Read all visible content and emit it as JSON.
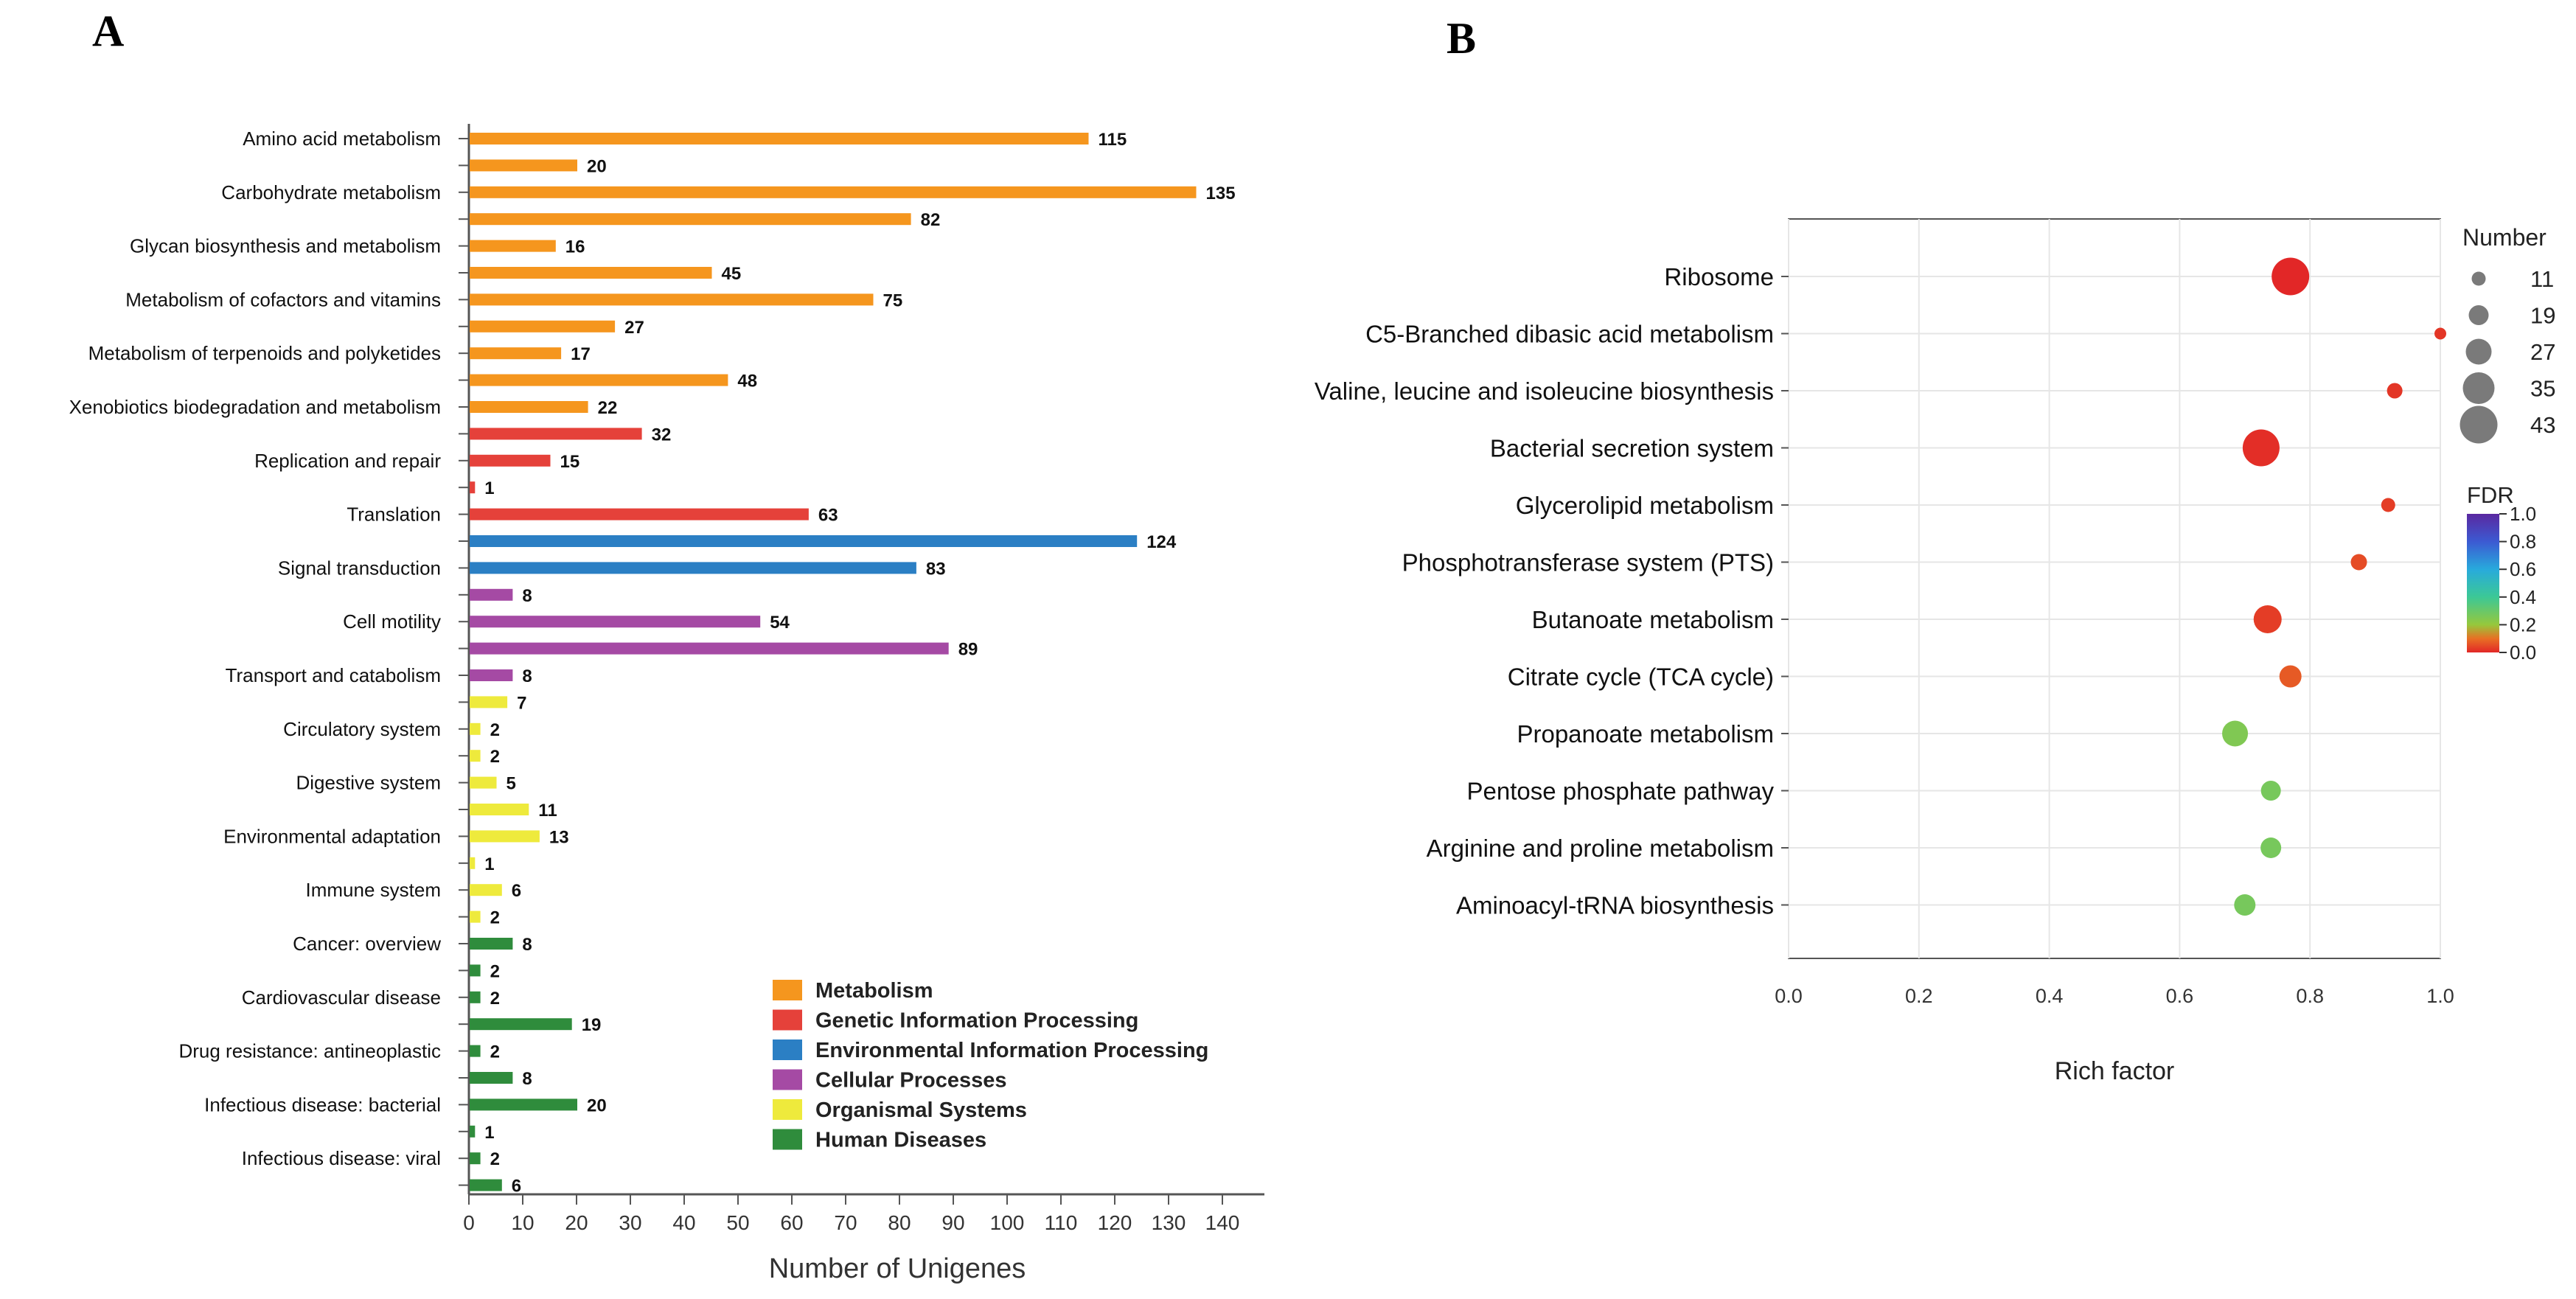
{
  "panel_a_label": "A",
  "panel_b_label": "B",
  "chart_data": [
    {
      "type": "bar",
      "orientation": "horizontal",
      "xlabel": "Number of Unigenes",
      "xlim": [
        0,
        145
      ],
      "xticks": [
        0,
        10,
        20,
        30,
        40,
        50,
        60,
        70,
        80,
        90,
        100,
        110,
        120,
        130,
        140
      ],
      "bars": [
        {
          "label": "Amino acid metabolism",
          "value": 115,
          "group": "Metabolism"
        },
        {
          "label": "",
          "value": 20,
          "group": "Metabolism"
        },
        {
          "label": "Carbohydrate metabolism",
          "value": 135,
          "group": "Metabolism"
        },
        {
          "label": "",
          "value": 82,
          "group": "Metabolism"
        },
        {
          "label": "Glycan biosynthesis and metabolism",
          "value": 16,
          "group": "Metabolism"
        },
        {
          "label": "",
          "value": 45,
          "group": "Metabolism"
        },
        {
          "label": "Metabolism of cofactors and vitamins",
          "value": 75,
          "group": "Metabolism"
        },
        {
          "label": "",
          "value": 27,
          "group": "Metabolism"
        },
        {
          "label": "Metabolism of terpenoids and polyketides",
          "value": 17,
          "group": "Metabolism"
        },
        {
          "label": "",
          "value": 48,
          "group": "Metabolism"
        },
        {
          "label": "Xenobiotics biodegradation and metabolism",
          "value": 22,
          "group": "Metabolism"
        },
        {
          "label": "",
          "value": 32,
          "group": "Genetic Information Processing"
        },
        {
          "label": "Replication and repair",
          "value": 15,
          "group": "Genetic Information Processing"
        },
        {
          "label": "",
          "value": 1,
          "group": "Genetic Information Processing"
        },
        {
          "label": "Translation",
          "value": 63,
          "group": "Genetic Information Processing"
        },
        {
          "label": "",
          "value": 124,
          "group": "Environmental Information Processing"
        },
        {
          "label": "Signal transduction",
          "value": 83,
          "group": "Environmental Information Processing"
        },
        {
          "label": "",
          "value": 8,
          "group": "Cellular Processes"
        },
        {
          "label": "Cell motility",
          "value": 54,
          "group": "Cellular Processes"
        },
        {
          "label": "",
          "value": 89,
          "group": "Cellular Processes"
        },
        {
          "label": "Transport and catabolism",
          "value": 8,
          "group": "Cellular Processes"
        },
        {
          "label": "",
          "value": 7,
          "group": "Organismal Systems"
        },
        {
          "label": "Circulatory system",
          "value": 2,
          "group": "Organismal Systems"
        },
        {
          "label": "",
          "value": 2,
          "group": "Organismal Systems"
        },
        {
          "label": "Digestive system",
          "value": 5,
          "group": "Organismal Systems"
        },
        {
          "label": "",
          "value": 11,
          "group": "Organismal Systems"
        },
        {
          "label": "Environmental adaptation",
          "value": 13,
          "group": "Organismal Systems"
        },
        {
          "label": "",
          "value": 1,
          "group": "Organismal Systems"
        },
        {
          "label": "Immune system",
          "value": 6,
          "group": "Organismal Systems"
        },
        {
          "label": "",
          "value": 2,
          "group": "Organismal Systems"
        },
        {
          "label": "Cancer: overview",
          "value": 8,
          "group": "Human Diseases"
        },
        {
          "label": "",
          "value": 2,
          "group": "Human Diseases"
        },
        {
          "label": "Cardiovascular disease",
          "value": 2,
          "group": "Human Diseases"
        },
        {
          "label": "",
          "value": 19,
          "group": "Human Diseases"
        },
        {
          "label": "Drug resistance: antineoplastic",
          "value": 2,
          "group": "Human Diseases"
        },
        {
          "label": "",
          "value": 8,
          "group": "Human Diseases"
        },
        {
          "label": "Infectious disease: bacterial",
          "value": 20,
          "group": "Human Diseases"
        },
        {
          "label": "",
          "value": 1,
          "group": "Human Diseases"
        },
        {
          "label": "Infectious disease: viral",
          "value": 2,
          "group": "Human Diseases"
        },
        {
          "label": "",
          "value": 6,
          "group": "Human Diseases"
        }
      ],
      "legend": {
        "placement": "bottom-right",
        "items": [
          {
            "name": "Metabolism",
            "color": "#f5961e"
          },
          {
            "name": "Genetic Information Processing",
            "color": "#e5413a"
          },
          {
            "name": "Environmental Information Processing",
            "color": "#2b7fc4"
          },
          {
            "name": "Cellular Processes",
            "color": "#a54aa4"
          },
          {
            "name": "Organismal Systems",
            "color": "#eeea3c"
          },
          {
            "name": "Human Diseases",
            "color": "#2f8c3c"
          }
        ]
      }
    },
    {
      "type": "scatter",
      "subtype": "bubble",
      "xlabel": "Rich factor",
      "xlim": [
        0,
        1.0
      ],
      "xticks": [
        "0.0",
        "0.2",
        "0.4",
        "0.6",
        "0.8",
        "1.0"
      ],
      "grid": true,
      "points": [
        {
          "pathway": "Ribosome",
          "rich_factor": 0.77,
          "number": 43,
          "fdr": 0.0
        },
        {
          "pathway": "C5-Branched dibasic acid metabolism",
          "rich_factor": 1.0,
          "number": 8,
          "fdr": 0.02
        },
        {
          "pathway": "Valine, leucine and isoleucine biosynthesis",
          "rich_factor": 0.93,
          "number": 13,
          "fdr": 0.02
        },
        {
          "pathway": "Bacterial secretion system",
          "rich_factor": 0.725,
          "number": 42,
          "fdr": 0.01
        },
        {
          "pathway": "Glycerolipid metabolism",
          "rich_factor": 0.92,
          "number": 11,
          "fdr": 0.03
        },
        {
          "pathway": "Phosphotransferase system (PTS)",
          "rich_factor": 0.875,
          "number": 14,
          "fdr": 0.05
        },
        {
          "pathway": "Butanoate metabolism",
          "rich_factor": 0.735,
          "number": 30,
          "fdr": 0.03
        },
        {
          "pathway": "Citrate cycle (TCA cycle)",
          "rich_factor": 0.77,
          "number": 22,
          "fdr": 0.07
        },
        {
          "pathway": "Propanoate metabolism",
          "rich_factor": 0.685,
          "number": 27,
          "fdr": 0.25
        },
        {
          "pathway": "Pentose phosphate pathway",
          "rich_factor": 0.74,
          "number": 19,
          "fdr": 0.27
        },
        {
          "pathway": "Arginine and proline metabolism",
          "rich_factor": 0.74,
          "number": 20,
          "fdr": 0.27
        },
        {
          "pathway": "Aminoacyl-tRNA biosynthesis",
          "rich_factor": 0.7,
          "number": 21,
          "fdr": 0.27
        }
      ],
      "size_legend": {
        "title": "Number",
        "values": [
          11,
          19,
          27,
          35,
          43
        ]
      },
      "color_legend": {
        "title": "FDR",
        "ticks": [
          "1.0",
          "0.8",
          "0.6",
          "0.4",
          "0.2",
          "0.0"
        ]
      }
    }
  ]
}
